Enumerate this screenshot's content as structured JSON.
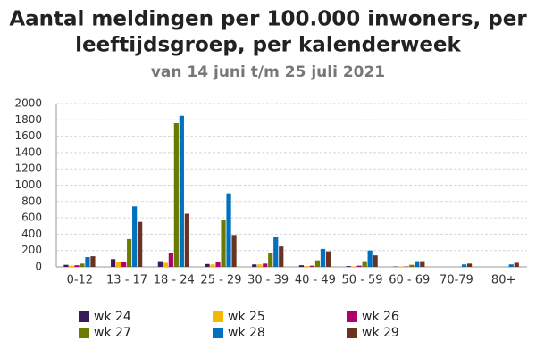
{
  "chart_data": {
    "type": "bar",
    "title": "Aantal meldingen per 100.000 inwoners, per",
    "title2": "leeftijdsgroep, per kalenderweek",
    "subtitle": "van 14 juni t/m 25 juli 2021",
    "categories": [
      "0-12",
      "13 - 17",
      "18 - 24",
      "25 - 29",
      "30 - 39",
      "40 - 49",
      "50 - 59",
      "60 - 69",
      "70-79",
      "80+"
    ],
    "series": [
      {
        "name": "wk 24",
        "color": "#3b1a5a",
        "values": [
          25,
          95,
          70,
          35,
          30,
          20,
          10,
          5,
          0,
          0
        ]
      },
      {
        "name": "wk 25",
        "color": "#f5b800",
        "values": [
          15,
          55,
          50,
          30,
          30,
          10,
          5,
          5,
          0,
          0
        ]
      },
      {
        "name": "wk 26",
        "color": "#b0006b",
        "values": [
          20,
          60,
          170,
          55,
          40,
          15,
          15,
          5,
          0,
          0
        ]
      },
      {
        "name": "wk 27",
        "color": "#6b7a00",
        "values": [
          40,
          340,
          1760,
          570,
          170,
          80,
          70,
          25,
          0,
          0
        ]
      },
      {
        "name": "wk 28",
        "color": "#0070c0",
        "values": [
          120,
          740,
          1850,
          900,
          370,
          220,
          200,
          70,
          30,
          30
        ]
      },
      {
        "name": "wk 29",
        "color": "#6b3222",
        "values": [
          130,
          550,
          650,
          390,
          250,
          190,
          140,
          70,
          40,
          50
        ]
      }
    ],
    "ylim": [
      0,
      2000
    ],
    "yticks": [
      0,
      200,
      400,
      600,
      800,
      1000,
      1200,
      1400,
      1600,
      1800,
      2000
    ],
    "grid": true
  }
}
